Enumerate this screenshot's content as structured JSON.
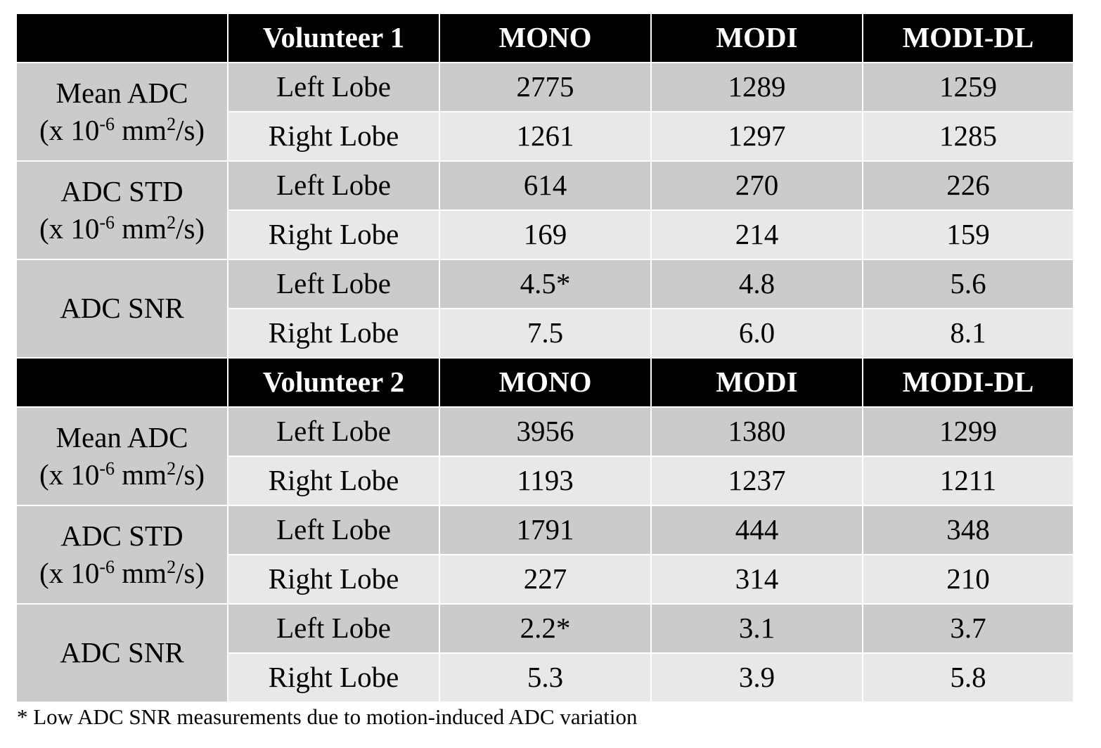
{
  "tables": [
    {
      "header": [
        "Volunteer 1",
        "MONO",
        "MODI",
        "MODI-DL"
      ],
      "groups": [
        {
          "label": "Mean ADC",
          "unit": [
            "(x 10",
            "-6",
            " mm",
            "2",
            "/s)"
          ],
          "rows": [
            {
              "label": "Left Lobe",
              "values": [
                "2775",
                "1289",
                "1259"
              ]
            },
            {
              "label": "Right Lobe",
              "values": [
                "1261",
                "1297",
                "1285"
              ]
            }
          ]
        },
        {
          "label": "ADC STD",
          "unit": [
            "(x 10",
            "-6",
            " mm",
            "2",
            "/s)"
          ],
          "rows": [
            {
              "label": "Left Lobe",
              "values": [
                "614",
                "270",
                "226"
              ]
            },
            {
              "label": "Right Lobe",
              "values": [
                "169",
                "214",
                "159"
              ]
            }
          ]
        },
        {
          "label": "ADC SNR",
          "rows": [
            {
              "label": "Left Lobe",
              "values": [
                "4.5*",
                "4.8",
                "5.6"
              ]
            },
            {
              "label": "Right Lobe",
              "values": [
                "7.5",
                "6.0",
                "8.1"
              ]
            }
          ]
        }
      ]
    },
    {
      "header": [
        "Volunteer 2",
        "MONO",
        "MODI",
        "MODI-DL"
      ],
      "groups": [
        {
          "label": "Mean ADC",
          "unit": [
            "(x 10",
            "-6",
            " mm",
            "2",
            "/s)"
          ],
          "rows": [
            {
              "label": "Left Lobe",
              "values": [
                "3956",
                "1380",
                "1299"
              ]
            },
            {
              "label": "Right Lobe",
              "values": [
                "1193",
                "1237",
                "1211"
              ]
            }
          ]
        },
        {
          "label": "ADC STD",
          "unit": [
            "(x 10",
            "-6",
            " mm",
            "2",
            "/s)"
          ],
          "rows": [
            {
              "label": "Left Lobe",
              "values": [
                "1791",
                "444",
                "348"
              ]
            },
            {
              "label": "Right Lobe",
              "values": [
                "227",
                "314",
                "210"
              ]
            }
          ]
        },
        {
          "label": "ADC SNR",
          "rows": [
            {
              "label": "Left Lobe",
              "values": [
                "2.2*",
                "3.1",
                "3.7"
              ]
            },
            {
              "label": "Right Lobe",
              "values": [
                "5.3",
                "3.9",
                "5.8"
              ]
            }
          ]
        }
      ]
    }
  ],
  "footnote": "* Low ADC SNR measurements due to motion-induced ADC variation"
}
